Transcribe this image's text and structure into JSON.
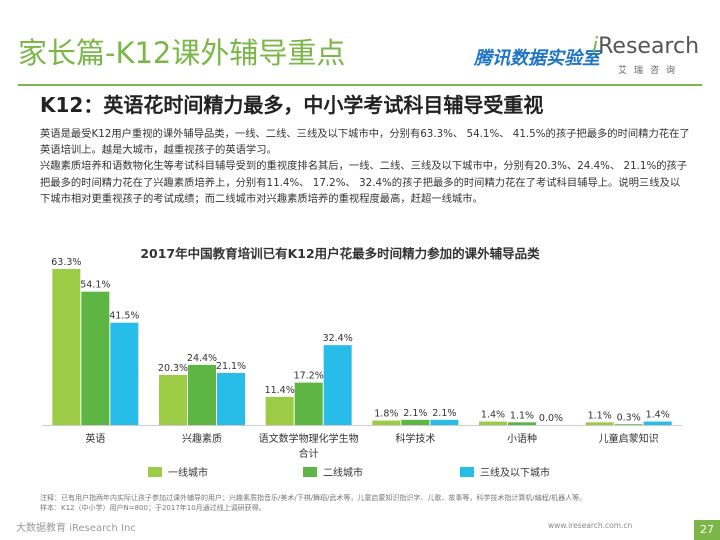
{
  "header": {
    "title": "家长篇-K12课外辅导重点",
    "logo_tencent": "腾讯数据实验室",
    "logo_iresearch_i": "i",
    "logo_iresearch_rest": "Research",
    "logo_iresearch_sub": "艾瑞咨询"
  },
  "subtitle": "K12：英语花时间精力最多，中小学考试科目辅导受重视",
  "paragraphs": [
    "英语是最受K12用户重视的课外辅导品类，一线、二线、三线及以下城市中，分别有63.3%、 54.1%、 41.5%的孩子把最多的时间精力花在了英语培训上。越是大城市，越重视孩子的英语学习。",
    "兴趣素质培养和语数物化生等考试科目辅导受到的重视度排名其后，一线、二线、三线及以下城市中，分别有20.3%、24.4%、 21.1%的孩子把最多的时间精力花在了兴趣素质培养上，分别有11.4%、 17.2%、 32.4%的孩子把最多的时间精力花在了考试科目辅导上。说明三线及以下城市相对更重视孩子的考试成绩；而二线城市对兴趣素质培养的重视程度最高，赶超一线城市。"
  ],
  "chart_data": {
    "type": "bar",
    "title": "2017年中国教育培训已有K12用户花最多时间精力参加的课外辅导品类",
    "categories": [
      "英语",
      "兴趣素质",
      "语文数学物理化学生物合计",
      "科学技术",
      "小语种",
      "儿童启蒙知识"
    ],
    "category_lines": [
      [
        "英语"
      ],
      [
        "兴趣素质"
      ],
      [
        "语文数学物理化学生物",
        "合计"
      ],
      [
        "科学技术"
      ],
      [
        "小语种"
      ],
      [
        "儿童启蒙知识"
      ]
    ],
    "series": [
      {
        "name": "一线城市",
        "color": "#9ccc45",
        "values": [
          63.3,
          20.3,
          11.4,
          1.8,
          1.4,
          1.1
        ]
      },
      {
        "name": "二线城市",
        "color": "#5db544",
        "values": [
          54.1,
          24.4,
          17.2,
          2.1,
          1.1,
          0.3
        ]
      },
      {
        "name": "三线及以下城市",
        "color": "#27bde8",
        "values": [
          41.5,
          21.1,
          32.4,
          2.1,
          0.0,
          1.4
        ]
      }
    ],
    "value_suffix": "%",
    "ylim": [
      0,
      70
    ],
    "xlabel": "",
    "ylabel": "",
    "grid": false,
    "legend": "bottom"
  },
  "footnote": [
    "注释：已有用户指两年内实际让孩子参加过课外辅导的用户；兴趣素质指音乐/美术/下棋/舞蹈/武术等，儿童启蒙知识指识字、儿歌、故事等，科学技术指计算机/编程/机器人等。",
    "样本：K12（中小学）用户N=800；于2017年10月通过线上调研获得。"
  ],
  "footer": {
    "watermark": "大数据教育",
    "company": "iResearch Inc",
    "url": "www.iresearch.com.cn",
    "page": "27"
  }
}
